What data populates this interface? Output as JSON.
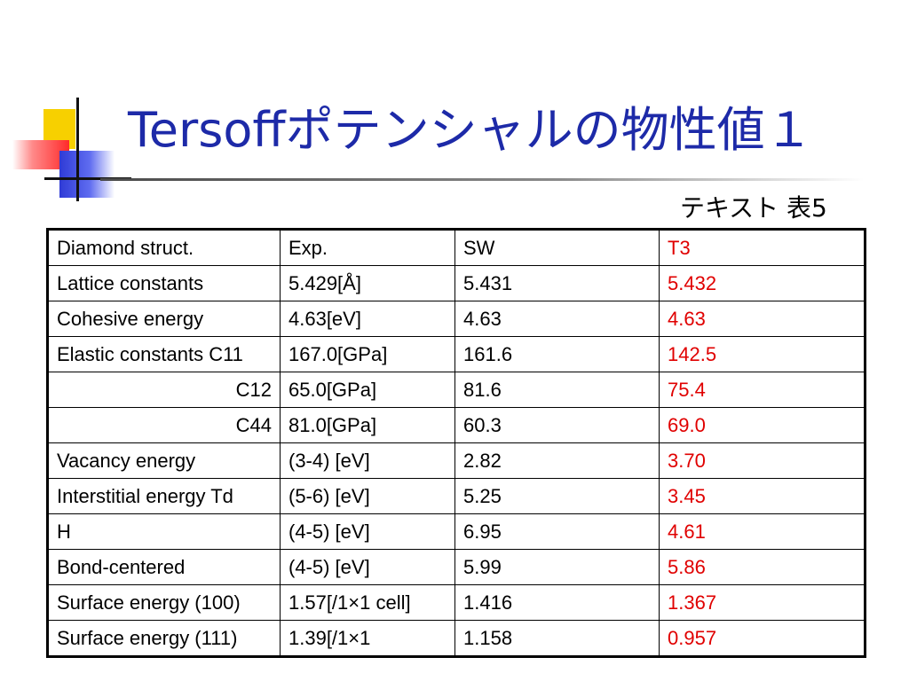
{
  "title": "Tersoffポテンシャルの物性値１",
  "caption": "テキスト 表5",
  "colors": {
    "title": "#1d2aa8",
    "t3_column": "#e00000"
  },
  "table": {
    "header": [
      "Diamond struct.",
      "Exp.",
      "SW",
      "T3"
    ],
    "rows": [
      [
        "Lattice constants",
        "5.429[Å]",
        "5.431",
        "5.432"
      ],
      [
        "Cohesive energy",
        "4.63[eV]",
        "4.63",
        "4.63"
      ],
      [
        "Elastic constants C11",
        "167.0[GPa]",
        "161.6",
        "142.5"
      ],
      [
        "C12",
        "65.0[GPa]",
        "81.6",
        "75.4"
      ],
      [
        "C44",
        "81.0[GPa]",
        "60.3",
        "69.0"
      ],
      [
        "Vacancy energy",
        "(3-4) [eV]",
        "2.82",
        "3.70"
      ],
      [
        "Interstitial energy Td",
        "(5-6) [eV]",
        "5.25",
        "3.45"
      ],
      [
        "H",
        "(4-5) [eV]",
        "6.95",
        "4.61"
      ],
      [
        "Bond-centered",
        "(4-5) [eV]",
        "5.99",
        "5.86"
      ],
      [
        "Surface energy (100)",
        "1.57[/1×1 cell]",
        "1.416",
        "1.367"
      ],
      [
        "Surface energy (111)",
        "1.39[/1×1",
        "1.158",
        "0.957"
      ]
    ]
  }
}
